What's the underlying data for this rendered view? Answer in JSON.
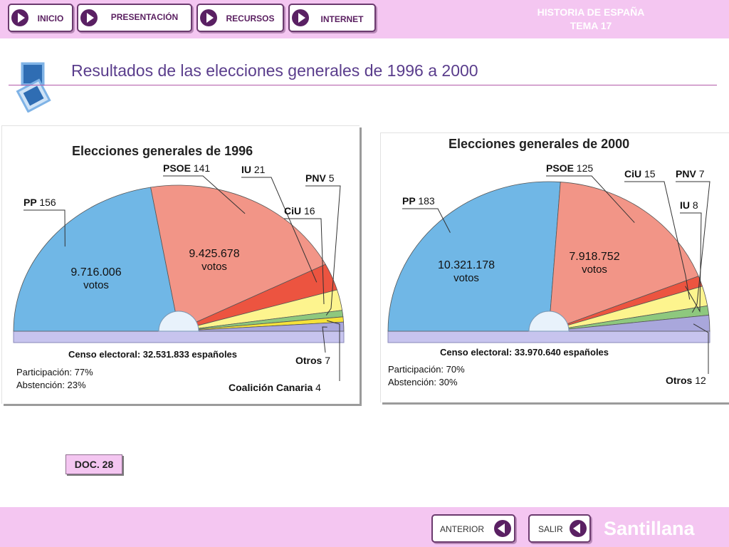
{
  "nav": {
    "inicio": "INICIO",
    "presentacion": "PRESENTACIÓN",
    "recursos": "RECURSOS",
    "internet": "INTERNET"
  },
  "course": {
    "line1": "HISTORIA DE ESPAÑA",
    "line2": "TEMA 17"
  },
  "page_title": "Resultados de las elecciones generales de 1996 a 2000",
  "doc_label": "DOC. 28",
  "footer": {
    "anterior": "ANTERIOR",
    "salir": "SALIR",
    "brand": "Santillana"
  },
  "colors": {
    "pp": "#70b7e6",
    "psoe": "#f29587",
    "iu": "#ec5440",
    "ciu": "#fdf48e",
    "pnv": "#8ec87e",
    "cc": "#f6e23a",
    "otros": "#a9a7dc",
    "base": "#c7c4ee",
    "bars": "#f4c6f1",
    "accent": "#5a2063",
    "title": "#5a3d8c"
  },
  "chart_data": [
    {
      "type": "pie",
      "title": "Elecciones generales de 1996",
      "unit": "escaños",
      "slices": [
        {
          "label": "PP",
          "value": 156,
          "votes": "9.716.006",
          "votes_unit": "votos"
        },
        {
          "label": "PSOE",
          "value": 141,
          "votes": "9.425.678",
          "votes_unit": "votos"
        },
        {
          "label": "IU",
          "value": 21
        },
        {
          "label": "CiU",
          "value": 16
        },
        {
          "label": "PNV",
          "value": 5
        },
        {
          "label": "Coalición Canaria",
          "value": 4
        },
        {
          "label": "Otros",
          "value": 7
        }
      ],
      "census": "Censo electoral: 32.531.833 españoles",
      "participation": "Participación: 77%",
      "abstention": "Abstención: 23%"
    },
    {
      "type": "pie",
      "title": "Elecciones generales de 2000",
      "unit": "escaños",
      "slices": [
        {
          "label": "PP",
          "value": 183,
          "votes": "10.321.178",
          "votes_unit": "votos"
        },
        {
          "label": "PSOE",
          "value": 125,
          "votes": "7.918.752",
          "votes_unit": "votos"
        },
        {
          "label": "IU",
          "value": 8
        },
        {
          "label": "CiU",
          "value": 15
        },
        {
          "label": "PNV",
          "value": 7
        },
        {
          "label": "Otros",
          "value": 12
        }
      ],
      "census": "Censo electoral: 33.970.640 españoles",
      "participation": "Participación: 70%",
      "abstention": "Abstención: 30%"
    }
  ]
}
